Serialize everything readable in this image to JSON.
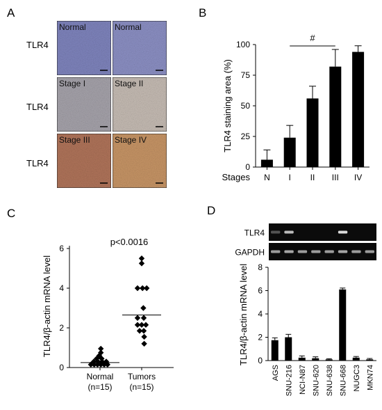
{
  "panels": {
    "A": {
      "letter": "A",
      "row_labels": [
        "TLR4",
        "TLR4",
        "TLR4"
      ],
      "tiles": [
        {
          "label": "Normal",
          "tone": "#7f84bd"
        },
        {
          "label": "Normal",
          "tone": "#8c90c4"
        },
        {
          "label": "Stage I",
          "tone": "#a6a3ab"
        },
        {
          "label": "Stage II",
          "tone": "#c6bcb4"
        },
        {
          "label": "Stage III",
          "tone": "#b0745a"
        },
        {
          "label": "Stage IV",
          "tone": "#c79566"
        }
      ]
    },
    "B": {
      "letter": "B"
    },
    "C": {
      "letter": "C"
    },
    "D": {
      "letter": "D",
      "gel_rows": [
        {
          "label": "TLR4",
          "bands": [
            0.35,
            0.85,
            0,
            0,
            0,
            1,
            0,
            0
          ]
        },
        {
          "label": "GAPDH",
          "bands": [
            0.7,
            0.75,
            0.7,
            0.7,
            0.7,
            0.75,
            0.7,
            0.7
          ]
        }
      ]
    }
  },
  "chart_data": [
    {
      "type": "bar",
      "panel": "B",
      "categories": [
        "N",
        "I",
        "II",
        "III",
        "IV"
      ],
      "category_axis_label": "Stages",
      "values": [
        6,
        24,
        56,
        82,
        94
      ],
      "errors": [
        8,
        10,
        10,
        14,
        5
      ],
      "ylabel": "TLR4 staining area (%)",
      "ylim": [
        0,
        100
      ],
      "yticks": [
        "0",
        "25",
        "50",
        "75",
        "100"
      ],
      "annotation": "#",
      "bar_color": "#000000"
    },
    {
      "type": "scatter",
      "panel": "C",
      "categories": [
        "Normal\n(n=15)",
        "Tumors\n(n=15)"
      ],
      "category_lines": [
        [
          "Normal",
          "(n=15)"
        ],
        [
          "Tumors",
          "(n=15)"
        ]
      ],
      "series": [
        {
          "group": "Normal",
          "points": [
            {
              "x": -0.22,
              "y": 0.15
            },
            {
              "x": -0.14,
              "y": 0.15
            },
            {
              "x": -0.06,
              "y": 0.15
            },
            {
              "x": 0.02,
              "y": 0.15
            },
            {
              "x": 0.1,
              "y": 0.15
            },
            {
              "x": 0.18,
              "y": 0.15
            },
            {
              "x": -0.15,
              "y": 0.3
            },
            {
              "x": -0.05,
              "y": 0.3
            },
            {
              "x": 0.05,
              "y": 0.3
            },
            {
              "x": 0.15,
              "y": 0.3
            },
            {
              "x": -0.08,
              "y": 0.45
            },
            {
              "x": 0.04,
              "y": 0.45
            },
            {
              "x": -0.02,
              "y": 0.6
            },
            {
              "x": 0.02,
              "y": 0.75
            },
            {
              "x": 0.02,
              "y": 0.95
            }
          ],
          "mean": 0.25
        },
        {
          "group": "Tumors",
          "points": [
            {
              "x": 0.0,
              "y": 5.5
            },
            {
              "x": 0.0,
              "y": 5.25
            },
            {
              "x": -0.1,
              "y": 4.0
            },
            {
              "x": 0.02,
              "y": 4.0
            },
            {
              "x": 0.12,
              "y": 4.0
            },
            {
              "x": 0.04,
              "y": 3.0
            },
            {
              "x": -0.1,
              "y": 2.5
            },
            {
              "x": 0.05,
              "y": 2.5
            },
            {
              "x": -0.1,
              "y": 2.15
            },
            {
              "x": 0.0,
              "y": 2.15
            },
            {
              "x": 0.1,
              "y": 2.15
            },
            {
              "x": -0.05,
              "y": 1.85
            },
            {
              "x": 0.05,
              "y": 1.85
            },
            {
              "x": 0.06,
              "y": 1.55
            },
            {
              "x": 0.06,
              "y": 1.2
            }
          ],
          "mean": 2.65
        }
      ],
      "ylabel": "TLR4/β-actin mRNA level",
      "ylim": [
        0,
        6
      ],
      "yticks": [
        "0",
        "2",
        "4",
        "6"
      ],
      "annotation": "p<0.0016"
    },
    {
      "type": "bar",
      "panel": "D",
      "categories": [
        "AGS",
        "SNU-216",
        "NCI-N87",
        "SNU-620",
        "SNU-638",
        "SNU-668",
        "NUGC3",
        "MKN74"
      ],
      "values": [
        1.75,
        2.0,
        0.25,
        0.2,
        0.1,
        6.1,
        0.25,
        0.1
      ],
      "errors": [
        0.2,
        0.25,
        0.15,
        0.12,
        0.06,
        0.12,
        0.1,
        0.08
      ],
      "ylabel": "TLR4/β-actin mRNA level",
      "ylim": [
        0,
        8
      ],
      "yticks": [
        "0",
        "2",
        "4",
        "6",
        "8"
      ],
      "bar_color": "#000000"
    }
  ]
}
